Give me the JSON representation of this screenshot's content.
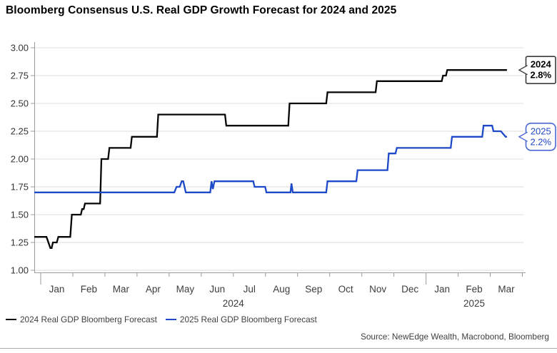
{
  "title": "Bloomberg Consensus U.S. Real GDP Growth Forecast for 2024 and 2025",
  "source": "Source: NewEdge Wealth, Macrobond, Bloomberg",
  "legend": {
    "items": [
      {
        "label": "2024 Real GDP Bloomberg Forecast",
        "color": "#050505"
      },
      {
        "label": "2025 Real GDP Bloomberg Forecast",
        "color": "#1e49c9"
      }
    ]
  },
  "colors": {
    "grid": "#dcdcdc",
    "axis": "#9b9b9b",
    "tick_label": "#343434",
    "month_label": "#3d3d3d",
    "black_line": "#050505",
    "blue_line": "#1e49c9",
    "background": "#ffffff"
  },
  "chart_data": {
    "type": "line",
    "title": "Bloomberg Consensus U.S. Real GDP Growth Forecast for 2024 and 2025",
    "xlabel": "",
    "ylabel": "",
    "ylim": [
      1.0,
      3.0
    ],
    "y_ticks": [
      1.0,
      1.25,
      1.5,
      1.75,
      2.0,
      2.25,
      2.5,
      2.75,
      3.0
    ],
    "grid": "horizontal-only",
    "legend_position": "bottom-left",
    "x_domain_months": [
      -0.2,
      15.1
    ],
    "month_labels": [
      "Jan",
      "Feb",
      "Mar",
      "Apr",
      "May",
      "Jun",
      "Jul",
      "Aug",
      "Sep",
      "Oct",
      "Nov",
      "Dec",
      "Jan",
      "Feb",
      "Mar"
    ],
    "year_labels": [
      {
        "text": "2024",
        "center_month": 6.0
      },
      {
        "text": "2025",
        "center_month": 13.5
      }
    ],
    "long_tick_months": [
      0,
      12
    ],
    "series": [
      {
        "name": "2024 Real GDP Bloomberg Forecast",
        "color": "#050505",
        "points": [
          [
            -0.2,
            1.3
          ],
          [
            0.18,
            1.3
          ],
          [
            0.3,
            1.2
          ],
          [
            0.34,
            1.2
          ],
          [
            0.38,
            1.25
          ],
          [
            0.5,
            1.25
          ],
          [
            0.55,
            1.3
          ],
          [
            0.92,
            1.3
          ],
          [
            0.97,
            1.5
          ],
          [
            1.25,
            1.5
          ],
          [
            1.29,
            1.55
          ],
          [
            1.34,
            1.55
          ],
          [
            1.38,
            1.6
          ],
          [
            1.85,
            1.6
          ],
          [
            1.89,
            2.0
          ],
          [
            2.1,
            2.0
          ],
          [
            2.14,
            2.1
          ],
          [
            2.8,
            2.1
          ],
          [
            2.84,
            2.2
          ],
          [
            3.62,
            2.2
          ],
          [
            3.66,
            2.4
          ],
          [
            5.74,
            2.4
          ],
          [
            5.78,
            2.3
          ],
          [
            7.71,
            2.3
          ],
          [
            7.75,
            2.5
          ],
          [
            8.89,
            2.5
          ],
          [
            8.93,
            2.6
          ],
          [
            10.43,
            2.6
          ],
          [
            10.47,
            2.7
          ],
          [
            12.49,
            2.7
          ],
          [
            12.53,
            2.75
          ],
          [
            12.62,
            2.75
          ],
          [
            12.66,
            2.8
          ],
          [
            14.52,
            2.8
          ]
        ]
      },
      {
        "name": "2025 Real GDP Bloomberg Forecast",
        "color": "#1e49c9",
        "points": [
          [
            -0.2,
            1.7
          ],
          [
            4.16,
            1.7
          ],
          [
            4.23,
            1.75
          ],
          [
            4.33,
            1.75
          ],
          [
            4.39,
            1.8
          ],
          [
            4.44,
            1.8
          ],
          [
            4.52,
            1.7
          ],
          [
            5.28,
            1.7
          ],
          [
            5.32,
            1.8
          ],
          [
            5.36,
            1.73
          ],
          [
            5.41,
            1.8
          ],
          [
            6.62,
            1.8
          ],
          [
            6.66,
            1.75
          ],
          [
            6.99,
            1.75
          ],
          [
            7.03,
            1.7
          ],
          [
            7.78,
            1.7
          ],
          [
            7.81,
            1.78
          ],
          [
            7.85,
            1.7
          ],
          [
            8.89,
            1.7
          ],
          [
            8.93,
            1.8
          ],
          [
            9.83,
            1.8
          ],
          [
            9.87,
            1.9
          ],
          [
            10.8,
            1.9
          ],
          [
            10.84,
            2.05
          ],
          [
            11.05,
            2.05
          ],
          [
            11.09,
            2.1
          ],
          [
            12.77,
            2.1
          ],
          [
            12.81,
            2.2
          ],
          [
            13.75,
            2.2
          ],
          [
            13.79,
            2.3
          ],
          [
            14.06,
            2.3
          ],
          [
            14.1,
            2.25
          ],
          [
            14.33,
            2.25
          ],
          [
            14.48,
            2.2
          ],
          [
            14.52,
            2.2
          ]
        ]
      }
    ],
    "callouts": [
      {
        "title": "2024",
        "value": "2.8%",
        "v": 2.8,
        "stroke": "#3c3c3c",
        "text_color": "#000000",
        "bold": true,
        "rx": 2
      },
      {
        "title": "2025",
        "value": "2.2%",
        "v": 2.2,
        "stroke": "#4a67d4",
        "text_color": "#2149c6",
        "bold": false,
        "rx": 7
      }
    ]
  }
}
